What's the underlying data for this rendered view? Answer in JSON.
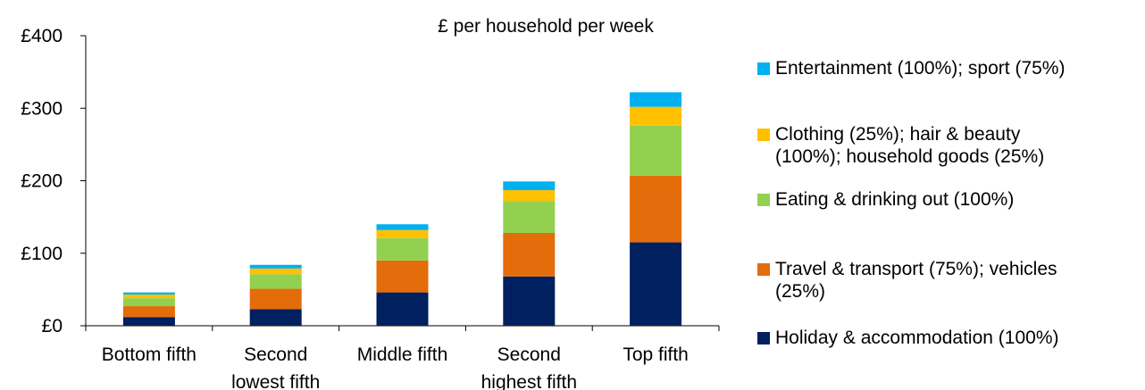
{
  "chart_data": {
    "type": "bar",
    "stacked": true,
    "title": "£ per household per week",
    "categories": [
      [
        "Bottom fifth"
      ],
      [
        "Second",
        "lowest fifth"
      ],
      [
        "Middle fifth"
      ],
      [
        "Second",
        "highest fifth"
      ],
      [
        "Top fifth"
      ]
    ],
    "y_ticks": [
      "£0",
      "£100",
      "£200",
      "£300",
      "£400"
    ],
    "ylim": [
      0,
      400
    ],
    "series": [
      {
        "name": "Holiday & accommodation (100%)",
        "color": "#002060",
        "values": [
          12,
          23,
          46,
          68,
          115
        ]
      },
      {
        "name": "Travel & transport (75%); vehicles (25%)",
        "color": "#E46C0A",
        "values": [
          15,
          28,
          44,
          60,
          92
        ]
      },
      {
        "name": "Eating & drinking out (100%)",
        "color": "#92D050",
        "values": [
          11,
          20,
          31,
          44,
          69
        ]
      },
      {
        "name": "Clothing (25%); hair & beauty (100%); household goods (25%)",
        "color": "#FFC000",
        "values": [
          5,
          8,
          11,
          15,
          26
        ]
      },
      {
        "name": "Entertainment (100%); sport (75%)",
        "color": "#00B0F0",
        "values": [
          3,
          5,
          8,
          12,
          20
        ]
      }
    ],
    "legend_order": [
      4,
      3,
      2,
      1,
      0
    ],
    "legend_lines": [
      [
        "Entertainment (100%); sport (75%)"
      ],
      [
        "Clothing (25%); hair & beauty",
        "(100%); household goods (25%)"
      ],
      [
        "Eating & drinking out (100%)"
      ],
      [
        "Travel & transport (75%); vehicles",
        "(25%)"
      ],
      [
        "Holiday & accommodation (100%)"
      ]
    ],
    "grid": false,
    "legend_position": "right"
  }
}
